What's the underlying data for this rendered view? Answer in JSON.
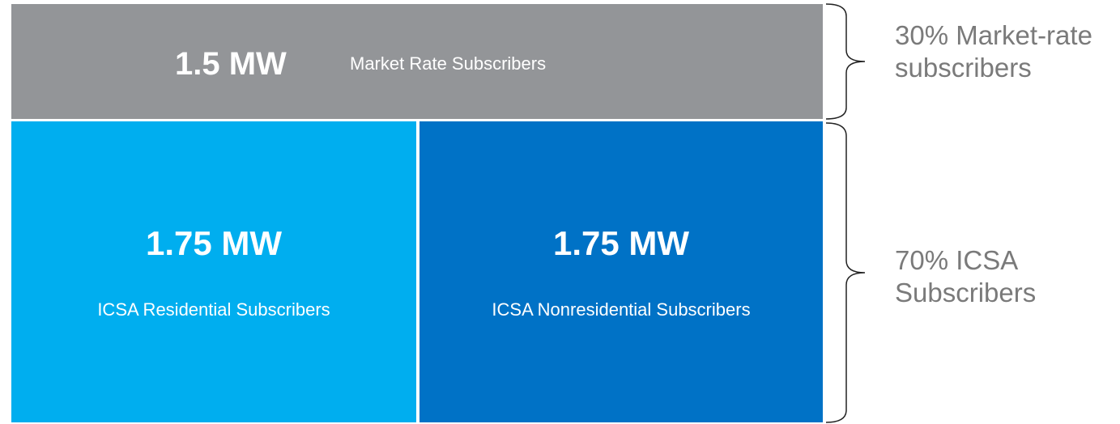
{
  "blocks": [
    {
      "value": "1.5 MW",
      "label": "Market Rate Subscribers"
    },
    {
      "value": "1.75 MW",
      "label": "ICSA Residential Subscribers"
    },
    {
      "value": "1.75 MW",
      "label": "ICSA Nonresidential Subscribers"
    }
  ],
  "brackets": [
    {
      "lines": [
        "30% Market-rate",
        "subscribers"
      ]
    },
    {
      "lines": [
        "70% ICSA",
        "Subscribers"
      ]
    }
  ]
}
